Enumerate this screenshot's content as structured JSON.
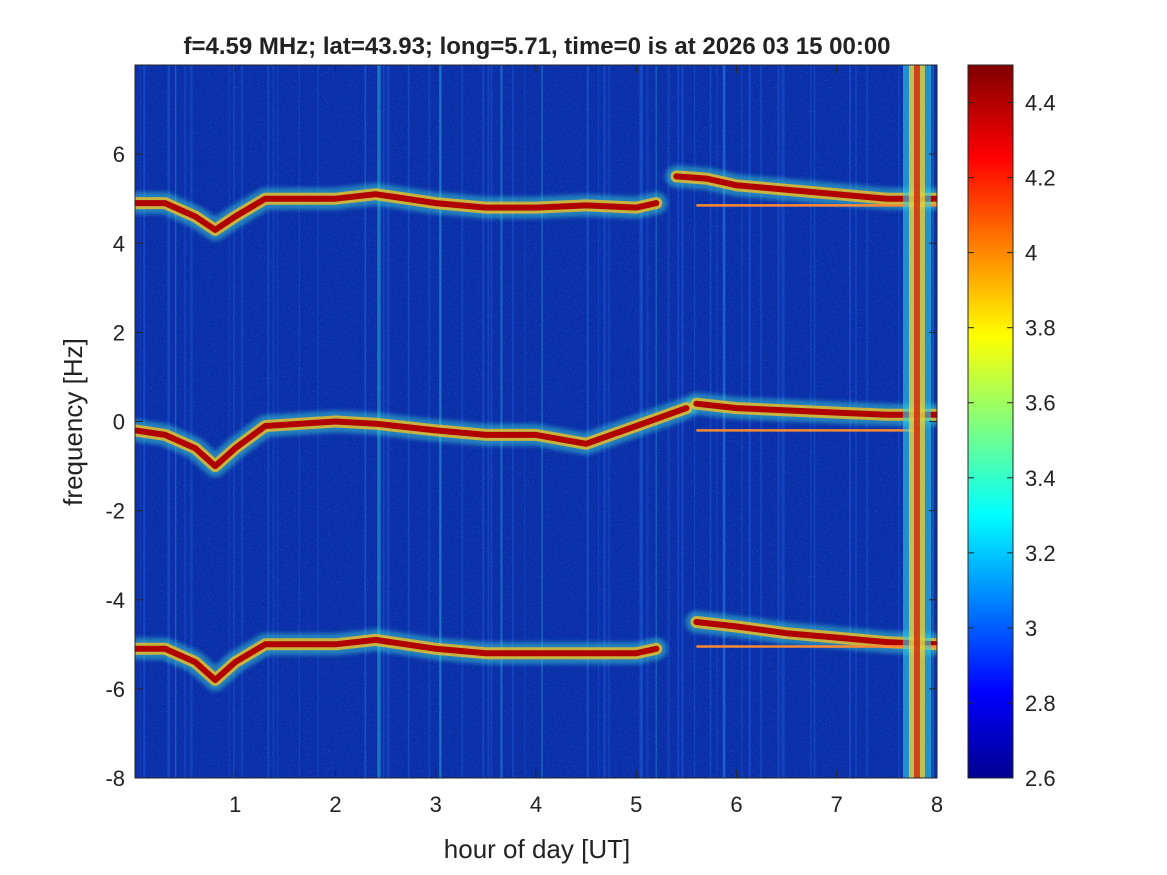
{
  "chart_data": {
    "type": "heatmap",
    "title": "f=4.59 MHz;  lat=43.93; long=5.71, time=0 is at 2026 03 15 00:00",
    "xlabel": "hour of day [UT]",
    "ylabel": "frequency [Hz]",
    "xlim": [
      0,
      8
    ],
    "ylim": [
      -8,
      8
    ],
    "xticks": [
      "1",
      "2",
      "3",
      "4",
      "5",
      "6",
      "7",
      "8"
    ],
    "xtick_values": [
      1,
      2,
      3,
      4,
      5,
      6,
      7,
      8
    ],
    "yticks": [
      "6",
      "4",
      "2",
      "0",
      "-2",
      "-4",
      "-6",
      "-8"
    ],
    "ytick_values": [
      6,
      4,
      2,
      0,
      -2,
      -4,
      -6,
      -8
    ],
    "colorbar": {
      "colormap": "jet",
      "limits": [
        2.6,
        4.5
      ],
      "ticks": [
        "4.4",
        "4.2",
        "4",
        "3.8",
        "3.6",
        "3.4",
        "3.2",
        "3",
        "2.8",
        "2.6"
      ],
      "tick_values": [
        4.4,
        4.2,
        4.0,
        3.8,
        3.6,
        3.4,
        3.2,
        3.0,
        2.8,
        2.6
      ]
    },
    "traces": [
      {
        "x": [
          0.0,
          0.3,
          0.6,
          0.8,
          1.0,
          1.3,
          2.0,
          2.4,
          3.0,
          3.5,
          4.0,
          4.5,
          5.0,
          5.2
        ],
        "y": [
          4.9,
          4.9,
          4.6,
          4.3,
          4.6,
          5.0,
          5.0,
          5.1,
          4.9,
          4.8,
          4.8,
          4.85,
          4.8,
          4.9
        ]
      },
      {
        "x": [
          0.0,
          0.3,
          0.6,
          0.8,
          1.0,
          1.3,
          2.0,
          2.4,
          3.0,
          3.5,
          4.0,
          4.5,
          5.0,
          5.5
        ],
        "y": [
          -0.2,
          -0.3,
          -0.6,
          -1.0,
          -0.6,
          -0.1,
          0.0,
          -0.05,
          -0.2,
          -0.3,
          -0.3,
          -0.5,
          -0.1,
          0.3
        ]
      },
      {
        "x": [
          0.0,
          0.3,
          0.6,
          0.8,
          1.0,
          1.3,
          2.0,
          2.4,
          3.0,
          3.5,
          4.0,
          4.5,
          5.0,
          5.2
        ],
        "y": [
          -5.1,
          -5.1,
          -5.4,
          -5.8,
          -5.4,
          -5.0,
          -5.0,
          -4.9,
          -5.1,
          -5.2,
          -5.2,
          -5.2,
          -5.2,
          -5.1
        ]
      },
      {
        "x": [
          5.4,
          5.7,
          6.0,
          6.5,
          7.0,
          7.5,
          8.0
        ],
        "y": [
          5.5,
          5.45,
          5.3,
          5.2,
          5.1,
          5.0,
          5.0
        ]
      },
      {
        "x": [
          5.6,
          6.0,
          6.5,
          7.0,
          7.5,
          8.0
        ],
        "y": [
          0.4,
          0.3,
          0.25,
          0.2,
          0.15,
          0.15
        ]
      },
      {
        "x": [
          5.6,
          6.0,
          6.5,
          7.0,
          7.5,
          8.0
        ],
        "y": [
          -4.5,
          -4.6,
          -4.75,
          -4.85,
          -4.95,
          -5.0
        ]
      }
    ],
    "flat_traces": [
      {
        "x": [
          5.6,
          8.0
        ],
        "y": [
          4.85,
          4.85
        ]
      },
      {
        "x": [
          5.6,
          7.8
        ],
        "y": [
          -0.2,
          -0.2
        ]
      },
      {
        "x": [
          5.6,
          8.0
        ],
        "y": [
          -5.05,
          -5.05
        ]
      }
    ],
    "vertical_band_x": 7.8
  }
}
